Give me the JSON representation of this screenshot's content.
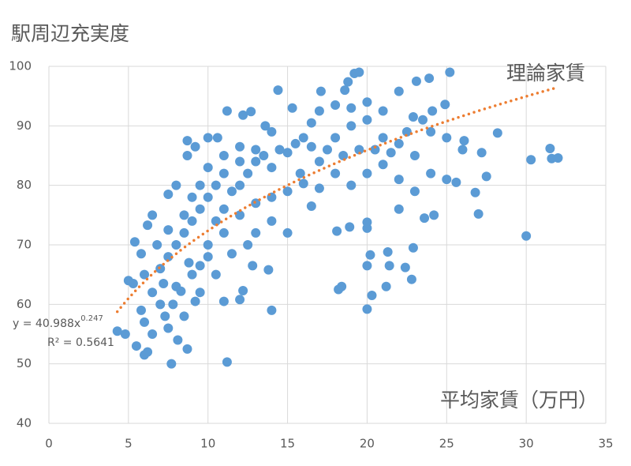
{
  "chart_data": {
    "type": "scatter",
    "title": "駅周辺充実度",
    "x_label": "平均家賃（万円）",
    "xlim": [
      0,
      35
    ],
    "xticks": [
      0,
      5,
      10,
      15,
      20,
      25,
      30,
      35
    ],
    "ylim": [
      40,
      100
    ],
    "yticks": [
      40,
      50,
      60,
      70,
      80,
      90,
      100
    ],
    "grid": true,
    "series": [
      {
        "color": "#5b9bd5",
        "x": [
          11.2,
          7.7,
          14,
          20,
          20.3,
          18.2,
          18.4,
          21.2,
          22.8,
          20,
          21.4,
          22.4,
          20.2,
          21.3,
          22.9,
          20,
          20,
          18.1,
          18.9,
          23.6,
          24.2,
          27,
          30,
          30.3,
          31.5,
          31.6,
          32,
          28.2,
          27.5,
          26.8,
          25.6,
          25,
          22,
          24.9,
          25.2,
          19.5,
          19.2,
          18.8,
          18.6,
          14.4,
          17.1,
          23.1,
          23.9,
          22,
          15.3,
          17,
          11.2,
          12.7,
          12.2,
          8.7,
          10.6,
          13.6,
          21,
          22.9,
          24.1,
          26.1,
          27.2,
          13.8,
          12.8,
          9.2,
          11,
          12,
          12.2,
          8.7,
          8.1,
          6.2,
          6,
          5.5,
          4.3,
          4.8,
          5,
          5.3,
          5.4,
          5.8,
          6.2,
          6.5,
          7.5,
          8,
          8.7,
          9.2,
          10,
          7.3,
          7.8,
          8.3,
          9.5,
          10,
          10.5,
          11,
          11.5,
          12,
          12.5,
          13,
          13.5,
          14,
          14.5,
          15,
          15.5,
          16,
          16.5,
          17,
          16,
          15,
          14,
          13,
          12,
          11,
          10,
          9,
          8,
          7,
          6,
          6.5,
          7,
          7.5,
          8,
          8.5,
          9,
          9.5,
          10,
          10.5,
          11,
          12,
          13,
          6,
          6.8,
          7.5,
          8.5,
          9,
          9.5,
          10,
          11,
          12,
          18,
          19,
          20,
          21,
          22,
          23,
          24,
          25,
          26,
          20,
          21,
          22,
          23,
          24,
          19,
          18,
          17,
          16.5,
          15,
          14,
          13,
          12.5,
          11.5,
          10.5,
          9.5,
          8.5,
          7.5,
          6.5,
          5.8,
          7.2,
          8.8,
          15.8,
          17.5,
          18.5,
          19.5,
          20.5,
          21.5,
          22.5,
          23.5,
          19,
          20,
          18,
          16.5,
          14
        ],
        "values": [
          50.3,
          50,
          59,
          59.2,
          61.5,
          62.5,
          63,
          63,
          64.2,
          66.5,
          66.5,
          66.2,
          68.3,
          68.8,
          69.5,
          72.8,
          73.8,
          72.3,
          73,
          74.5,
          75,
          75.2,
          71.5,
          84.3,
          86.2,
          84.5,
          84.6,
          88.8,
          81.5,
          78.8,
          80.5,
          81,
          76,
          93.6,
          99,
          99,
          98.8,
          97.4,
          96,
          96,
          95.8,
          97.5,
          98,
          95.8,
          93,
          92.5,
          92.5,
          92.4,
          91.8,
          87.5,
          88,
          90,
          92.5,
          91.5,
          92.5,
          87.5,
          85.5,
          65.8,
          66.5,
          60.5,
          60.5,
          60.8,
          62.3,
          52.5,
          54,
          52,
          51.5,
          53,
          55.5,
          55,
          64,
          63.5,
          70.5,
          68.5,
          73.3,
          75,
          78.5,
          80,
          85,
          86.5,
          88,
          58,
          60,
          62.2,
          66.5,
          70,
          74,
          76,
          79,
          80,
          82,
          84,
          85,
          83,
          86,
          85.5,
          87,
          88,
          86.5,
          84,
          80.3,
          79,
          78,
          77,
          75,
          72,
          68,
          65,
          63,
          60,
          57,
          62,
          66,
          68,
          70,
          72,
          74,
          76,
          78,
          80,
          82,
          84,
          86,
          65,
          70,
          72.5,
          75,
          78,
          80,
          83,
          85,
          86.5,
          88,
          90,
          91,
          88,
          87,
          85,
          89,
          88,
          86,
          82,
          83.5,
          81,
          79,
          82,
          80,
          82,
          79.5,
          76.5,
          72,
          74,
          72,
          70,
          68.5,
          65,
          62,
          58,
          56,
          55,
          59,
          63.5,
          67,
          82,
          86,
          85,
          86,
          86,
          85.5,
          89,
          91,
          93,
          94,
          93.5,
          90.5,
          89
        ]
      }
    ],
    "trendline": {
      "name": "理論家賃",
      "color": "#ed7d31",
      "coefficient": 40.988,
      "power": 0.247,
      "x_range": [
        4.3,
        32
      ],
      "equation": "y = 40.988x",
      "exponent": "0.247",
      "r2_label": "R² = 0.5641"
    }
  }
}
